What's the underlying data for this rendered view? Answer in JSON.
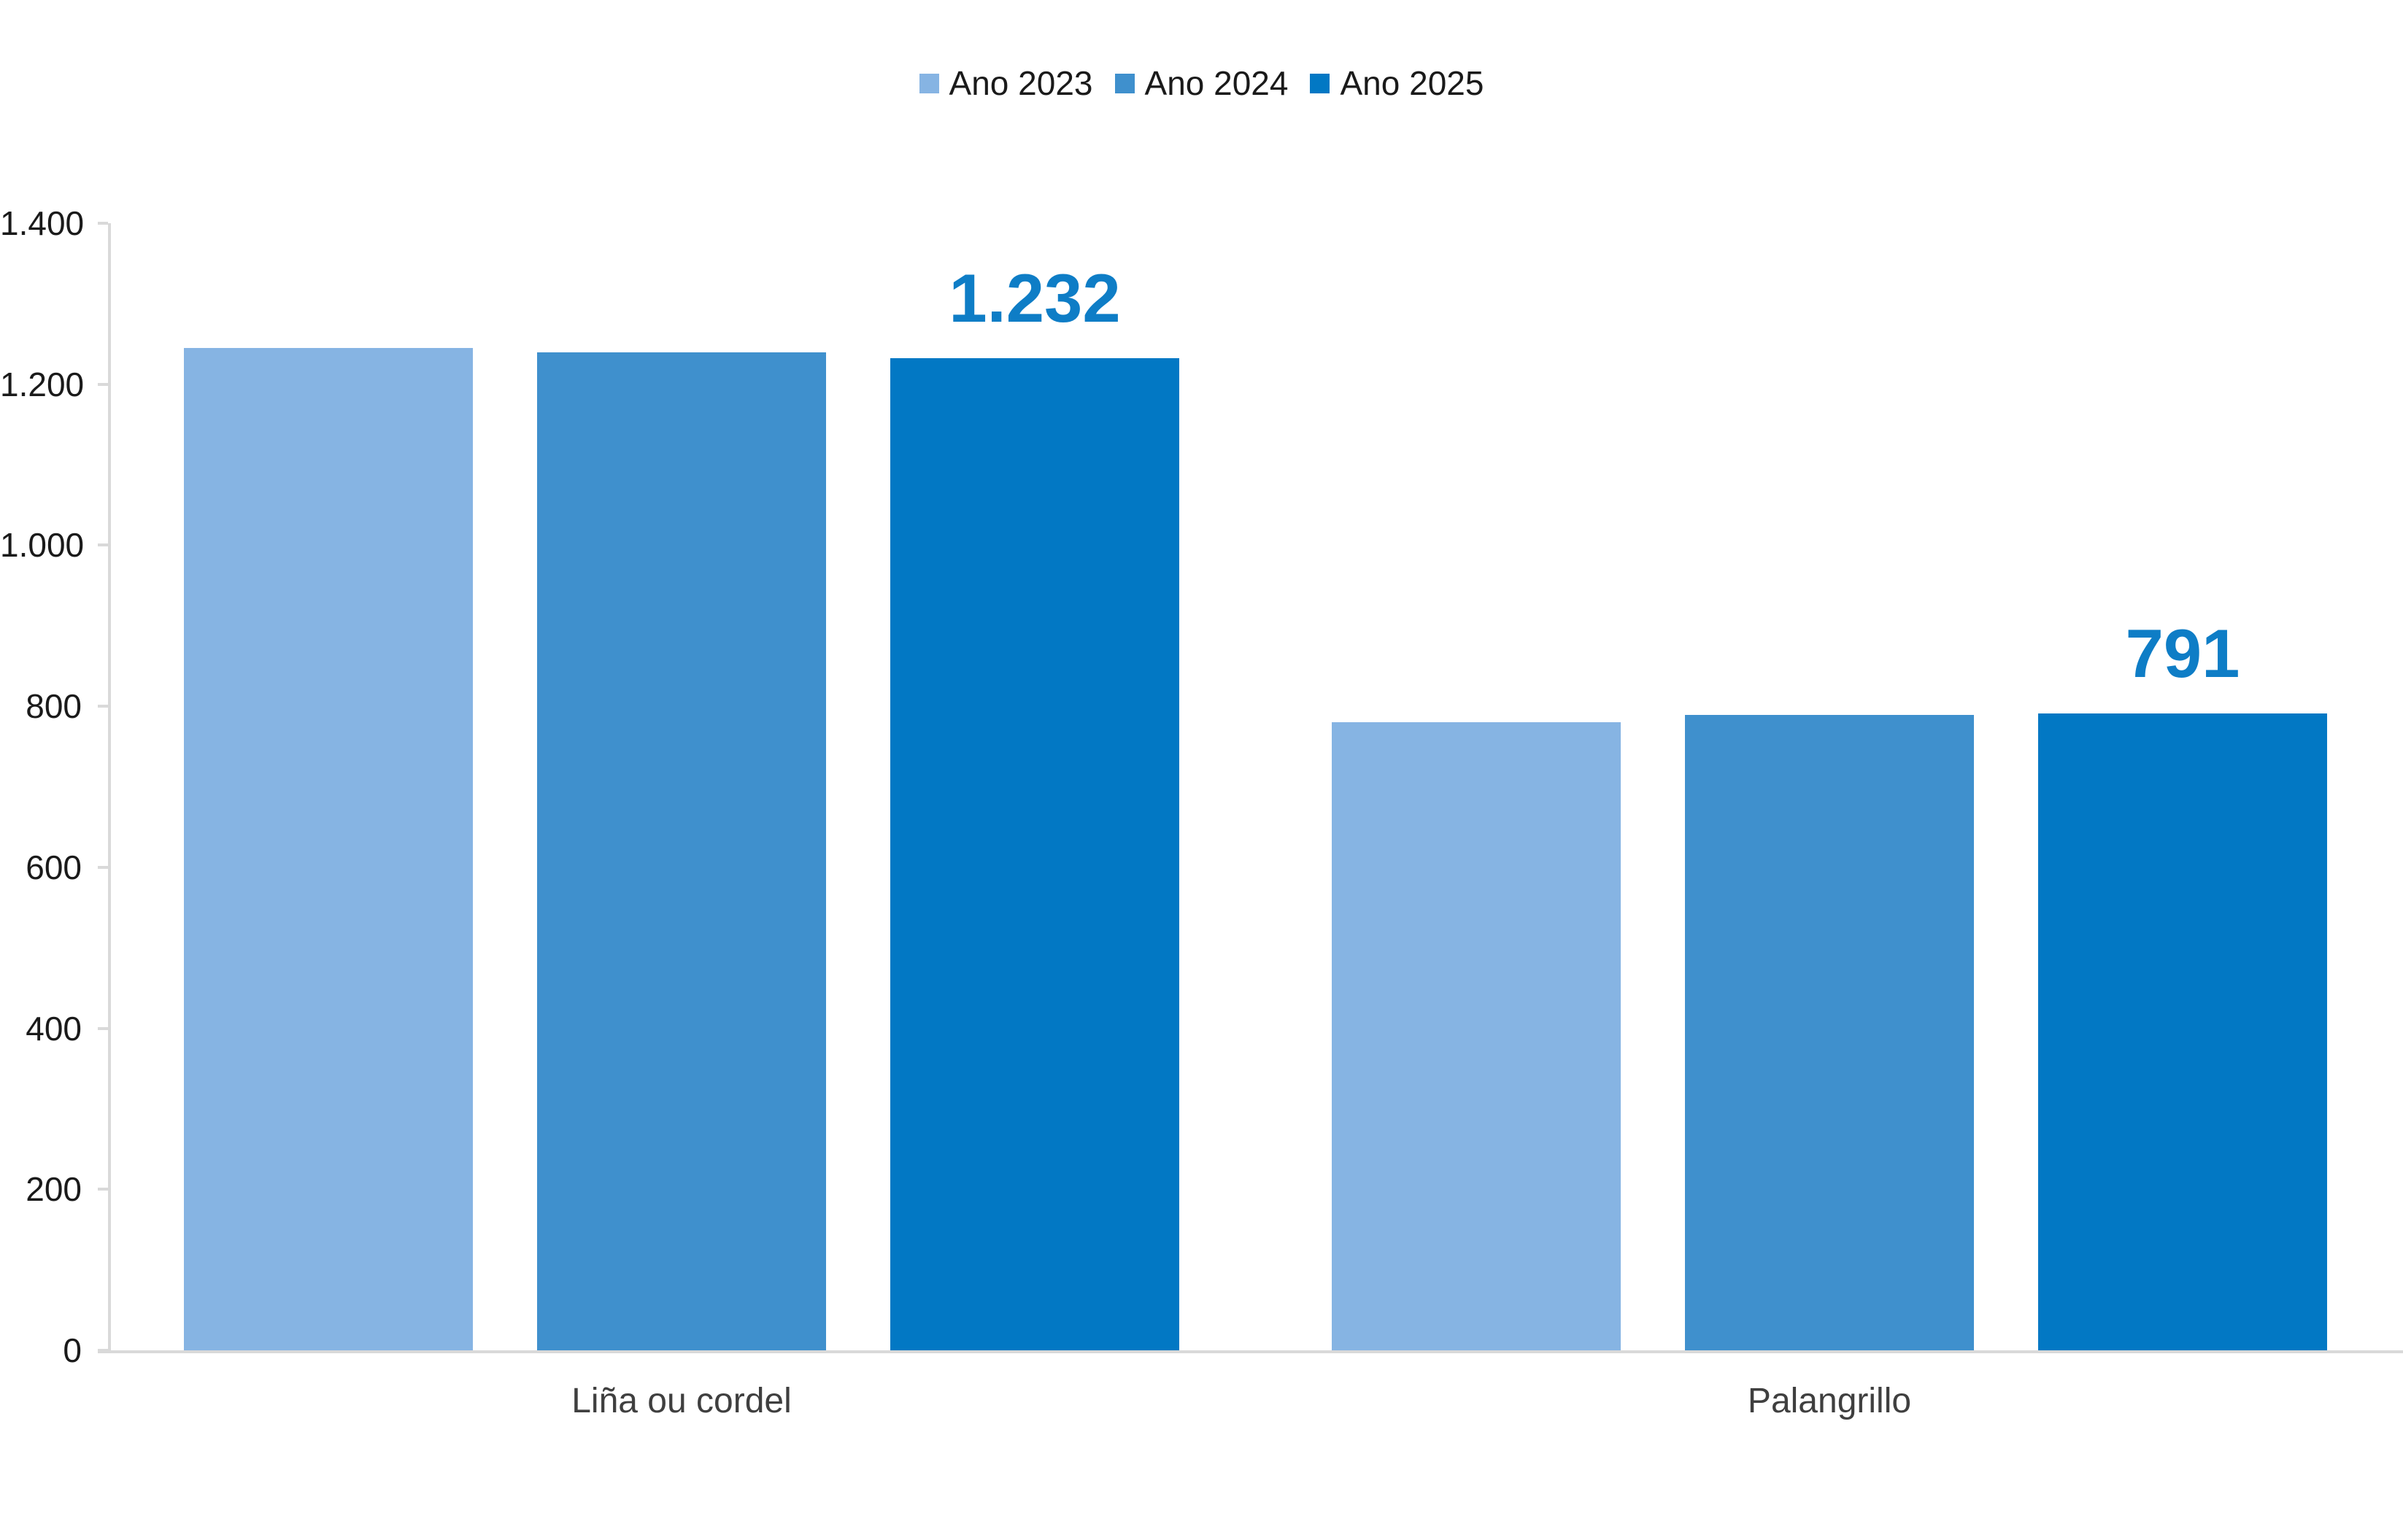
{
  "chart_data": {
    "type": "bar",
    "title": "",
    "xlabel": "",
    "ylabel": "",
    "categories": [
      "Liña ou cordel",
      "Palangrillo"
    ],
    "series": [
      {
        "name": "Ano 2023",
        "color": "#86B4E3",
        "values": [
          1245,
          780
        ],
        "labels": [
          "",
          ""
        ]
      },
      {
        "name": "Ano 2024",
        "color": "#3F90CD",
        "values": [
          1240,
          789
        ],
        "labels": [
          "",
          ""
        ]
      },
      {
        "name": "Ano 2025",
        "color": "#0278C4",
        "values": [
          1232,
          791
        ],
        "labels": [
          "1.232",
          "791"
        ]
      }
    ],
    "data_label_color": "#0E7DC6",
    "ylim": [
      0,
      1400
    ],
    "y_ticks": [
      {
        "value": 0,
        "label": "0"
      },
      {
        "value": 200,
        "label": "200"
      },
      {
        "value": 400,
        "label": "400"
      },
      {
        "value": 600,
        "label": "600"
      },
      {
        "value": 800,
        "label": "800"
      },
      {
        "value": 1000,
        "label": "1.000"
      },
      {
        "value": 1200,
        "label": "1.200"
      },
      {
        "value": 1400,
        "label": "1.400"
      }
    ],
    "grid": false,
    "legend_position": "top",
    "axis_color": "#d9d9d9",
    "tick_label_color": "#1a1a1a",
    "category_label_color": "#3f3f3f"
  }
}
